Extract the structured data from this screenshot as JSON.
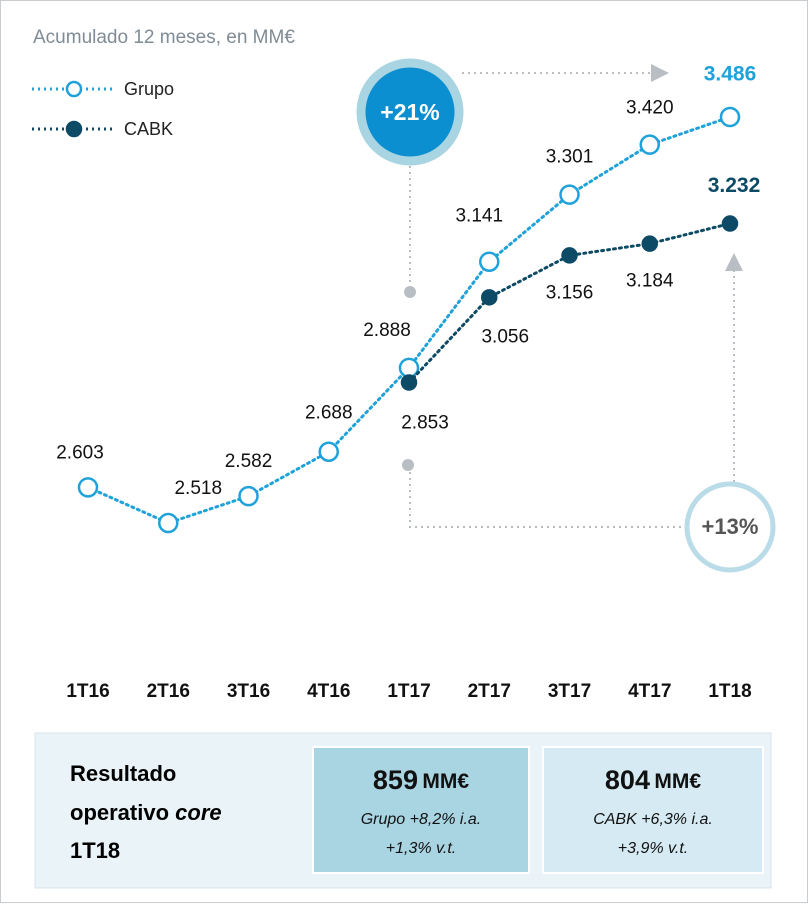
{
  "chart_data": {
    "type": "line",
    "title": "Acumulado 12 meses, en MM€",
    "categories": [
      "1T16",
      "2T16",
      "3T16",
      "4T16",
      "1T17",
      "2T17",
      "3T17",
      "4T17",
      "1T18"
    ],
    "series": [
      {
        "name": "Grupo",
        "color": "#1fa1d9",
        "marker": "open",
        "values": [
          2603,
          2518,
          2582,
          2688,
          2888,
          3141,
          3301,
          3420,
          3486
        ],
        "value_labels": [
          "2.603",
          "2.518",
          "2.582",
          "2.688",
          "2.888",
          "3.141",
          "3.301",
          "3.420",
          "3.486"
        ]
      },
      {
        "name": "CABK",
        "color": "#0c4a66",
        "marker": "filled",
        "values": [
          null,
          null,
          null,
          null,
          2853,
          3056,
          3156,
          3184,
          3232
        ],
        "value_labels": [
          null,
          null,
          null,
          null,
          "2.853",
          "3.056",
          "3.156",
          "3.184",
          "3.232"
        ]
      }
    ],
    "legend": "top-left",
    "annotations": [
      "+21%",
      "+13%"
    ],
    "summary": {
      "label_lines": [
        "Resultado",
        "operativo",
        "1T18"
      ],
      "label_italic": "core",
      "boxes": [
        {
          "value": 859,
          "unit": "MM€",
          "lines": [
            "Grupo +8,2% i.a.",
            "+1,3% v.t."
          ]
        },
        {
          "value": 804,
          "unit": "MM€",
          "lines": [
            "CABK +6,3% i.a.",
            "+3,9% v.t."
          ]
        }
      ]
    }
  }
}
